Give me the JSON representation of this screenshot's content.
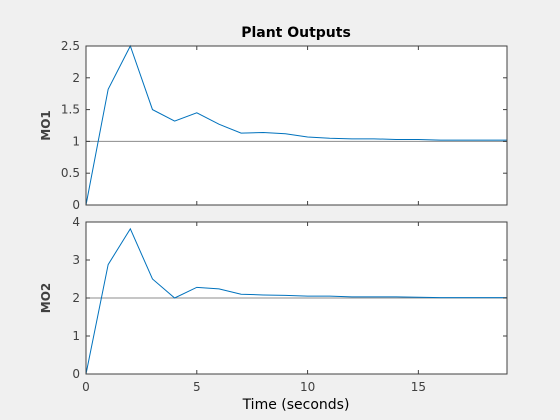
{
  "chart_data": {
    "type": "line",
    "title": "Plant Outputs",
    "xlabel": "Time (seconds)",
    "xlim": [
      0,
      19
    ],
    "xticks": [
      0,
      5,
      10,
      15
    ],
    "line_color": "#0072bd",
    "reference_line_color": "#8c8c8c",
    "axes_color": "#404040",
    "figure_background": "#f0f0f0",
    "axes_background": "#ffffff",
    "grid": false,
    "subplots": [
      {
        "ylabel": "MO1",
        "ylim": [
          0,
          2.5
        ],
        "yticks": [
          "0",
          "0.5",
          "1",
          "1.5",
          "2",
          "2.5"
        ],
        "reference": 1,
        "x": [
          0,
          1,
          2,
          3,
          4,
          5,
          6,
          7,
          8,
          9,
          10,
          11,
          12,
          13,
          14,
          15,
          16,
          17,
          18,
          19
        ],
        "y": [
          0,
          1.82,
          2.5,
          1.5,
          1.32,
          1.45,
          1.27,
          1.13,
          1.14,
          1.12,
          1.07,
          1.05,
          1.04,
          1.04,
          1.03,
          1.03,
          1.02,
          1.02,
          1.02,
          1.02
        ]
      },
      {
        "ylabel": "MO2",
        "ylim": [
          0,
          4
        ],
        "yticks": [
          "0",
          "1",
          "2",
          "3",
          "4"
        ],
        "reference": 2,
        "x": [
          0,
          1,
          2,
          3,
          4,
          5,
          6,
          7,
          8,
          9,
          10,
          11,
          12,
          13,
          14,
          15,
          16,
          17,
          18,
          19
        ],
        "y": [
          0,
          2.88,
          3.82,
          2.5,
          2.0,
          2.28,
          2.24,
          2.1,
          2.08,
          2.07,
          2.05,
          2.05,
          2.03,
          2.03,
          2.03,
          2.02,
          2.01,
          2.01,
          2.01,
          2.01
        ]
      }
    ]
  }
}
